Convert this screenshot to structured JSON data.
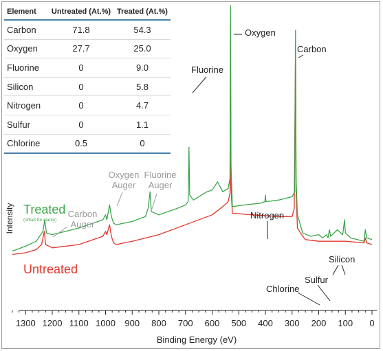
{
  "table": {
    "headers": [
      "Element",
      "Untreated (At.%)",
      "Treated (At.%)"
    ],
    "rows": [
      [
        "Carbon",
        "71.8",
        "54.3"
      ],
      [
        "Oxygen",
        "27.7",
        "25.0"
      ],
      [
        "Fluorine",
        "0",
        "9.0"
      ],
      [
        "Silicon",
        "0",
        "5.8"
      ],
      [
        "Nitrogen",
        "0",
        "4.7"
      ],
      [
        "Sulfur",
        "0",
        "1.1"
      ],
      [
        "Chlorine",
        "0.5",
        "0"
      ]
    ]
  },
  "chart_data": {
    "type": "line",
    "xlabel": "Binding Energy (eV)",
    "ylabel": "Intensity",
    "xlim": [
      1350,
      0
    ],
    "x_reversed": true,
    "xticks": [
      1300,
      1200,
      1100,
      1000,
      900,
      800,
      700,
      600,
      500,
      400,
      300,
      200,
      100,
      0
    ],
    "grid": false,
    "legend_placement": "left, inline labels",
    "series": [
      {
        "name": "Treated",
        "note": "(offset for clarity)",
        "color": "#3aa64a",
        "points": [
          [
            1350,
            0.36
          ],
          [
            1300,
            0.39
          ],
          [
            1260,
            0.42
          ],
          [
            1235,
            0.48
          ],
          [
            1228,
            0.55
          ],
          [
            1222,
            0.47
          ],
          [
            1200,
            0.46
          ],
          [
            1100,
            0.5
          ],
          [
            1010,
            0.55
          ],
          [
            1000,
            0.58
          ],
          [
            995,
            0.55
          ],
          [
            985,
            0.64
          ],
          [
            978,
            0.57
          ],
          [
            970,
            0.53
          ],
          [
            960,
            0.52
          ],
          [
            900,
            0.54
          ],
          [
            850,
            0.57
          ],
          [
            840,
            0.62
          ],
          [
            833,
            0.72
          ],
          [
            828,
            0.6
          ],
          [
            800,
            0.58
          ],
          [
            730,
            0.62
          ],
          [
            700,
            0.64
          ],
          [
            690,
            0.66
          ],
          [
            687,
            0.99
          ],
          [
            684,
            0.7
          ],
          [
            670,
            0.67
          ],
          [
            620,
            0.72
          ],
          [
            600,
            0.73
          ],
          [
            580,
            0.78
          ],
          [
            560,
            0.72
          ],
          [
            540,
            0.74
          ],
          [
            533,
            0.8
          ],
          [
            531,
            1.85
          ],
          [
            529,
            0.88
          ],
          [
            524,
            0.63
          ],
          [
            480,
            0.64
          ],
          [
            420,
            0.65
          ],
          [
            402,
            0.66
          ],
          [
            400,
            0.7
          ],
          [
            398,
            0.66
          ],
          [
            350,
            0.67
          ],
          [
            300,
            0.69
          ],
          [
            290,
            0.72
          ],
          [
            287,
            1.7
          ],
          [
            285,
            0.8
          ],
          [
            280,
            0.58
          ],
          [
            260,
            0.47
          ],
          [
            230,
            0.45
          ],
          [
            200,
            0.46
          ],
          [
            185,
            0.44
          ],
          [
            170,
            0.46
          ],
          [
            165,
            0.44
          ],
          [
            160,
            0.49
          ],
          [
            155,
            0.45
          ],
          [
            130,
            0.49
          ],
          [
            110,
            0.46
          ],
          [
            103,
            0.55
          ],
          [
            100,
            0.47
          ],
          [
            80,
            0.44
          ],
          [
            30,
            0.42
          ],
          [
            25,
            0.49
          ],
          [
            20,
            0.44
          ],
          [
            0,
            0.43
          ]
        ]
      },
      {
        "name": "Untreated",
        "color": "#e0362c",
        "points": [
          [
            1350,
            0.34
          ],
          [
            1300,
            0.35
          ],
          [
            1260,
            0.37
          ],
          [
            1240,
            0.4
          ],
          [
            1230,
            0.48
          ],
          [
            1225,
            0.4
          ],
          [
            1200,
            0.38
          ],
          [
            1100,
            0.4
          ],
          [
            1010,
            0.45
          ],
          [
            1000,
            0.48
          ],
          [
            995,
            0.46
          ],
          [
            985,
            0.52
          ],
          [
            978,
            0.45
          ],
          [
            970,
            0.41
          ],
          [
            960,
            0.4
          ],
          [
            900,
            0.42
          ],
          [
            800,
            0.46
          ],
          [
            700,
            0.52
          ],
          [
            600,
            0.58
          ],
          [
            560,
            0.63
          ],
          [
            540,
            0.66
          ],
          [
            533,
            0.71
          ],
          [
            531,
            1.62
          ],
          [
            529,
            0.74
          ],
          [
            524,
            0.59
          ],
          [
            450,
            0.58
          ],
          [
            350,
            0.57
          ],
          [
            300,
            0.57
          ],
          [
            292,
            0.62
          ],
          [
            287,
            1.62
          ],
          [
            285,
            0.72
          ],
          [
            280,
            0.5
          ],
          [
            260,
            0.45
          ],
          [
            250,
            0.43
          ],
          [
            200,
            0.42
          ],
          [
            100,
            0.42
          ],
          [
            30,
            0.41
          ],
          [
            25,
            0.44
          ],
          [
            20,
            0.41
          ],
          [
            0,
            0.4
          ]
        ]
      }
    ],
    "annotations": [
      {
        "text": "Oxygen",
        "x": 531
      },
      {
        "text": "Carbon",
        "x": 287
      },
      {
        "text": "Fluorine",
        "x": 687
      },
      {
        "text": "Nitrogen",
        "x": 400
      },
      {
        "text": "Silicon",
        "x": 103
      },
      {
        "text": "Sulfur",
        "x": 165
      },
      {
        "text": "Chlorine",
        "x": 200
      },
      {
        "text": "Oxygen Auger",
        "x": 978
      },
      {
        "text": "Fluorine Auger",
        "x": 833
      },
      {
        "text": "Carbon Auger",
        "x": 1228
      }
    ]
  }
}
